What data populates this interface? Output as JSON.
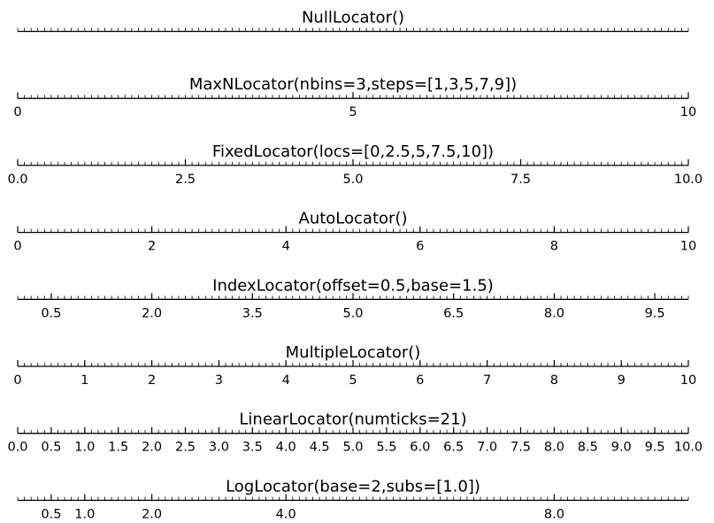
{
  "chart_data": {
    "type": "table",
    "xlim": [
      0,
      10
    ],
    "minor_tick_step": 0.1,
    "panels": [
      {
        "title": "NullLocator()",
        "major_ticks": [],
        "tick_labels": []
      },
      {
        "title": "MaxNLocator(nbins=3,steps=[1,3,5,7,9])",
        "major_ticks": [
          0,
          5,
          10
        ],
        "tick_labels": [
          "0",
          "5",
          "10"
        ]
      },
      {
        "title": "FixedLocator(locs=[0,2.5,5,7.5,10])",
        "major_ticks": [
          0,
          2.5,
          5,
          7.5,
          10
        ],
        "tick_labels": [
          "0.0",
          "2.5",
          "5.0",
          "7.5",
          "10.0"
        ]
      },
      {
        "title": "AutoLocator()",
        "major_ticks": [
          0,
          2,
          4,
          6,
          8,
          10
        ],
        "tick_labels": [
          "0",
          "2",
          "4",
          "6",
          "8",
          "10"
        ]
      },
      {
        "title": "IndexLocator(offset=0.5,base=1.5)",
        "major_ticks": [
          0.5,
          2.0,
          3.5,
          5.0,
          6.5,
          8.0,
          9.5
        ],
        "tick_labels": [
          "0.5",
          "2.0",
          "3.5",
          "5.0",
          "6.5",
          "8.0",
          "9.5"
        ]
      },
      {
        "title": "MultipleLocator()",
        "major_ticks": [
          0,
          1,
          2,
          3,
          4,
          5,
          6,
          7,
          8,
          9,
          10
        ],
        "tick_labels": [
          "0",
          "1",
          "2",
          "3",
          "4",
          "5",
          "6",
          "7",
          "8",
          "9",
          "10"
        ]
      },
      {
        "title": "LinearLocator(numticks=21)",
        "major_ticks": [
          0,
          0.5,
          1,
          1.5,
          2,
          2.5,
          3,
          3.5,
          4,
          4.5,
          5,
          5.5,
          6,
          6.5,
          7,
          7.5,
          8,
          8.5,
          9,
          9.5,
          10
        ],
        "tick_labels": [
          "0.0",
          "0.5",
          "1.0",
          "1.5",
          "2.0",
          "2.5",
          "3.0",
          "3.5",
          "4.0",
          "4.5",
          "5.0",
          "5.5",
          "6.0",
          "6.5",
          "7.0",
          "7.5",
          "8.0",
          "8.5",
          "9.0",
          "9.5",
          "10.0"
        ]
      },
      {
        "title": "LogLocator(base=2,subs=[1.0])",
        "major_ticks": [
          0.5,
          1,
          2,
          4,
          8
        ],
        "tick_labels": [
          "0.5",
          "1.0",
          "2.0",
          "4.0",
          "8.0"
        ]
      }
    ]
  }
}
